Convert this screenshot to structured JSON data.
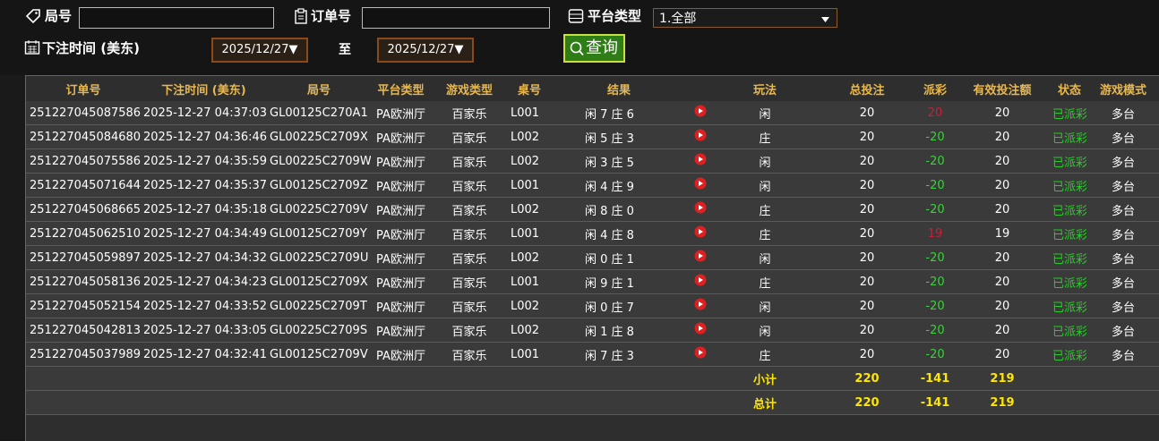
{
  "filters": {
    "round_label": "局号",
    "order_label": "订单号",
    "platform_label": "平台类型",
    "platform_value": "1.全部",
    "time_label": "下注时间 (美东)",
    "date_from": "2025/12/27▼",
    "to_label": "至",
    "date_to": "2025/12/27▼",
    "query_button": "查询"
  },
  "table": {
    "columns": [
      "订单号",
      "下注时间 (美东)",
      "局号",
      "平台类型",
      "游戏类型",
      "桌号",
      "结果",
      "玩法",
      "总投注",
      "派彩",
      "有效投注额",
      "状态",
      "游戏模式"
    ],
    "rows": [
      [
        "251227045087586",
        "2025-12-27 04:37:03",
        "GL00125C270A1",
        "PA欧洲厅",
        "百家乐",
        "L001",
        "闲 7 庄 6",
        "闲",
        20,
        20,
        20,
        "已派彩",
        "多台"
      ],
      [
        "251227045084680",
        "2025-12-27 04:36:46",
        "GL00225C2709X",
        "PA欧洲厅",
        "百家乐",
        "L002",
        "闲 5 庄 3",
        "庄",
        20,
        -20,
        20,
        "已派彩",
        "多台"
      ],
      [
        "251227045075586",
        "2025-12-27 04:35:59",
        "GL00225C2709W",
        "PA欧洲厅",
        "百家乐",
        "L002",
        "闲 3 庄 5",
        "闲",
        20,
        -20,
        20,
        "已派彩",
        "多台"
      ],
      [
        "251227045071644",
        "2025-12-27 04:35:37",
        "GL00125C2709Z",
        "PA欧洲厅",
        "百家乐",
        "L001",
        "闲 4 庄 9",
        "闲",
        20,
        -20,
        20,
        "已派彩",
        "多台"
      ],
      [
        "251227045068665",
        "2025-12-27 04:35:18",
        "GL00225C2709V",
        "PA欧洲厅",
        "百家乐",
        "L002",
        "闲 8 庄 0",
        "庄",
        20,
        -20,
        20,
        "已派彩",
        "多台"
      ],
      [
        "251227045062510",
        "2025-12-27 04:34:49",
        "GL00125C2709Y",
        "PA欧洲厅",
        "百家乐",
        "L001",
        "闲 4 庄 8",
        "庄",
        20,
        19,
        19,
        "已派彩",
        "多台"
      ],
      [
        "251227045059897",
        "2025-12-27 04:34:32",
        "GL00225C2709U",
        "PA欧洲厅",
        "百家乐",
        "L002",
        "闲 0 庄 1",
        "闲",
        20,
        -20,
        20,
        "已派彩",
        "多台"
      ],
      [
        "251227045058136",
        "2025-12-27 04:34:23",
        "GL00125C2709X",
        "PA欧洲厅",
        "百家乐",
        "L001",
        "闲 9 庄 1",
        "庄",
        20,
        -20,
        20,
        "已派彩",
        "多台"
      ],
      [
        "251227045052154",
        "2025-12-27 04:33:52",
        "GL00225C2709T",
        "PA欧洲厅",
        "百家乐",
        "L002",
        "闲 0 庄 7",
        "闲",
        20,
        -20,
        20,
        "已派彩",
        "多台"
      ],
      [
        "251227045042813",
        "2025-12-27 04:33:05",
        "GL00225C2709S",
        "PA欧洲厅",
        "百家乐",
        "L002",
        "闲 1 庄 8",
        "闲",
        20,
        -20,
        20,
        "已派彩",
        "多台"
      ],
      [
        "251227045037989",
        "2025-12-27 04:32:41",
        "GL00125C2709V",
        "PA欧洲厅",
        "百家乐",
        "L001",
        "闲 7 庄 3",
        "庄",
        20,
        -20,
        20,
        "已派彩",
        "多台"
      ]
    ],
    "subtotal": {
      "label": "小计",
      "total_bet": 220,
      "payout": -141,
      "valid_bet": 219
    },
    "total": {
      "label": "总计",
      "total_bet": 220,
      "payout": -141,
      "valid_bet": 219
    }
  }
}
